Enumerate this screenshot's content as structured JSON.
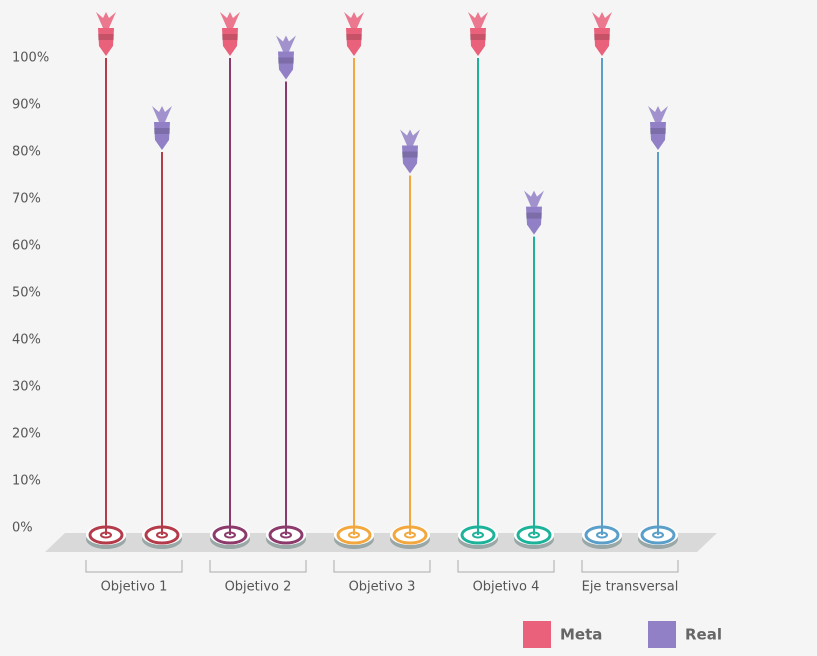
{
  "chart_data": {
    "type": "dart-lollipop",
    "categories": [
      "Objetivo 1",
      "Objetivo 2",
      "Objetivo 3",
      "Objetivo 4",
      "Eje transversal"
    ],
    "category_colors": [
      "#b33b4a",
      "#8c3a6b",
      "#f3a73f",
      "#1db39b",
      "#5a9fca"
    ],
    "series": [
      {
        "name": "Meta",
        "color": "#e9617b",
        "values": [
          100,
          100,
          100,
          100,
          100
        ]
      },
      {
        "name": "Real",
        "color": "#9280c6",
        "values": [
          80,
          95,
          75,
          62,
          80
        ]
      }
    ],
    "ylim": [
      0,
      100
    ],
    "yticks": [
      {
        "value": 0,
        "label": "0%"
      },
      {
        "value": 10,
        "label": "10%"
      },
      {
        "value": 20,
        "label": "20%"
      },
      {
        "value": 30,
        "label": "30%"
      },
      {
        "value": 40,
        "label": "40%"
      },
      {
        "value": 50,
        "label": "50%"
      },
      {
        "value": 60,
        "label": "60%"
      },
      {
        "value": 70,
        "label": "70%"
      },
      {
        "value": 80,
        "label": "80%"
      },
      {
        "value": 90,
        "label": "90%"
      },
      {
        "value": 100,
        "label": "100%"
      }
    ]
  }
}
